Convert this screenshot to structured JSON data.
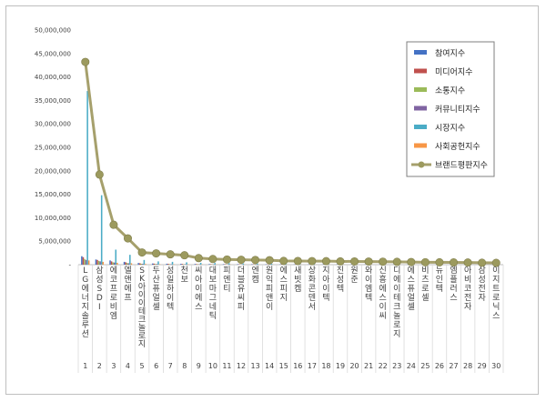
{
  "chart_data": {
    "type": "bar",
    "categories": [
      "LG에너지솔루션",
      "삼성SDI",
      "에코프로비엠",
      "엘앤에프",
      "SK아이이테크놀로지",
      "두산퓨얼셀",
      "성일하이텍",
      "천보",
      "씨아이에스",
      "대보마그네틱",
      "피엔티",
      "더블유씨피",
      "엔켐",
      "원익피앤이",
      "에스피지",
      "새빗켐",
      "상화콘덴서",
      "지아이텍",
      "진성텍",
      "원준",
      "와이엠텍",
      "신흥에스이씨",
      "디에이테크놀로지",
      "에스퓨얼셀",
      "비츠로셀",
      "뉴인텍",
      "엠플러스",
      "아비코전자",
      "삼성전자",
      "이지트로닉스"
    ],
    "index_labels": [
      "1",
      "2",
      "3",
      "4",
      "5",
      "6",
      "7",
      "8",
      "9",
      "10",
      "11",
      "12",
      "13",
      "14",
      "15",
      "16",
      "17",
      "18",
      "19",
      "20",
      "21",
      "22",
      "23",
      "24",
      "25",
      "26",
      "27",
      "28",
      "29",
      "30"
    ],
    "series": [
      {
        "name": "참여지수",
        "values": [
          1800000,
          1100000,
          900000,
          600000,
          350000,
          250000,
          200000,
          180000,
          150000,
          130000,
          110000,
          100000,
          90000,
          80000,
          70000,
          60000,
          55000,
          50000,
          45000,
          40000,
          38000,
          35000,
          30000,
          28000,
          25000,
          22000,
          20000,
          18000,
          15000,
          12000
        ]
      },
      {
        "name": "미디어지수",
        "values": [
          1600000,
          1000000,
          700000,
          500000,
          300000,
          220000,
          180000,
          150000,
          120000,
          100000,
          90000,
          80000,
          70000,
          60000,
          55000,
          50000,
          45000,
          40000,
          35000,
          30000,
          28000,
          25000,
          22000,
          20000,
          18000,
          15000,
          12000,
          10000,
          9000,
          8000
        ]
      },
      {
        "name": "소통지수",
        "values": [
          1200000,
          800000,
          500000,
          350000,
          200000,
          150000,
          120000,
          100000,
          90000,
          80000,
          70000,
          60000,
          55000,
          50000,
          45000,
          40000,
          35000,
          30000,
          28000,
          25000,
          22000,
          20000,
          18000,
          15000,
          12000,
          10000,
          9000,
          8000,
          7000,
          6000
        ]
      },
      {
        "name": "커뮤니티지수",
        "values": [
          1000000,
          700000,
          450000,
          300000,
          180000,
          130000,
          100000,
          90000,
          80000,
          70000,
          60000,
          55000,
          50000,
          45000,
          40000,
          35000,
          30000,
          28000,
          25000,
          22000,
          20000,
          18000,
          15000,
          12000,
          10000,
          9000,
          8000,
          7000,
          6000,
          5000
        ]
      },
      {
        "name": "시장지수",
        "values": [
          37000000,
          14800000,
          3200000,
          2100000,
          1000000,
          700000,
          600000,
          500000,
          400000,
          350000,
          300000,
          250000,
          220000,
          200000,
          180000,
          160000,
          150000,
          140000,
          130000,
          120000,
          110000,
          100000,
          90000,
          80000,
          70000,
          60000,
          50000,
          40000,
          30000,
          20000
        ]
      },
      {
        "name": "사회공헌지수",
        "values": [
          900000,
          600000,
          400000,
          300000,
          150000,
          100000,
          80000,
          70000,
          60000,
          50000,
          45000,
          40000,
          35000,
          30000,
          28000,
          25000,
          22000,
          20000,
          18000,
          15000,
          12000,
          10000,
          9000,
          8000,
          7000,
          6000,
          5000,
          4000,
          3000,
          2000
        ]
      }
    ],
    "line_series": {
      "name": "브랜드평판지수",
      "values": [
        43200000,
        19200000,
        8500000,
        5600000,
        2600000,
        2400000,
        2200000,
        2000000,
        1400000,
        1200000,
        1100000,
        1050000,
        1000000,
        950000,
        800000,
        780000,
        760000,
        740000,
        700000,
        680000,
        660000,
        640000,
        600000,
        560000,
        520000,
        500000,
        480000,
        460000,
        400000,
        380000
      ]
    },
    "y_ticks": [
      "-",
      "5,000,000",
      "10,000,000",
      "15,000,000",
      "20,000,000",
      "25,000,000",
      "30,000,000",
      "35,000,000",
      "40,000,000",
      "45,000,000",
      "50,000,000"
    ],
    "ylim": [
      0,
      50000000
    ],
    "grid": false,
    "legend_position": "right",
    "colors": {
      "참여지수": "#4472c4",
      "미디어지수": "#c0504d",
      "소통지수": "#9bbb59",
      "커뮤니티지수": "#8064a2",
      "시장지수": "#4bacc6",
      "사회공헌지수": "#f79646",
      "브랜드평판지수": "#a6a06c",
      "line_marker": "#9c9a5e"
    }
  }
}
